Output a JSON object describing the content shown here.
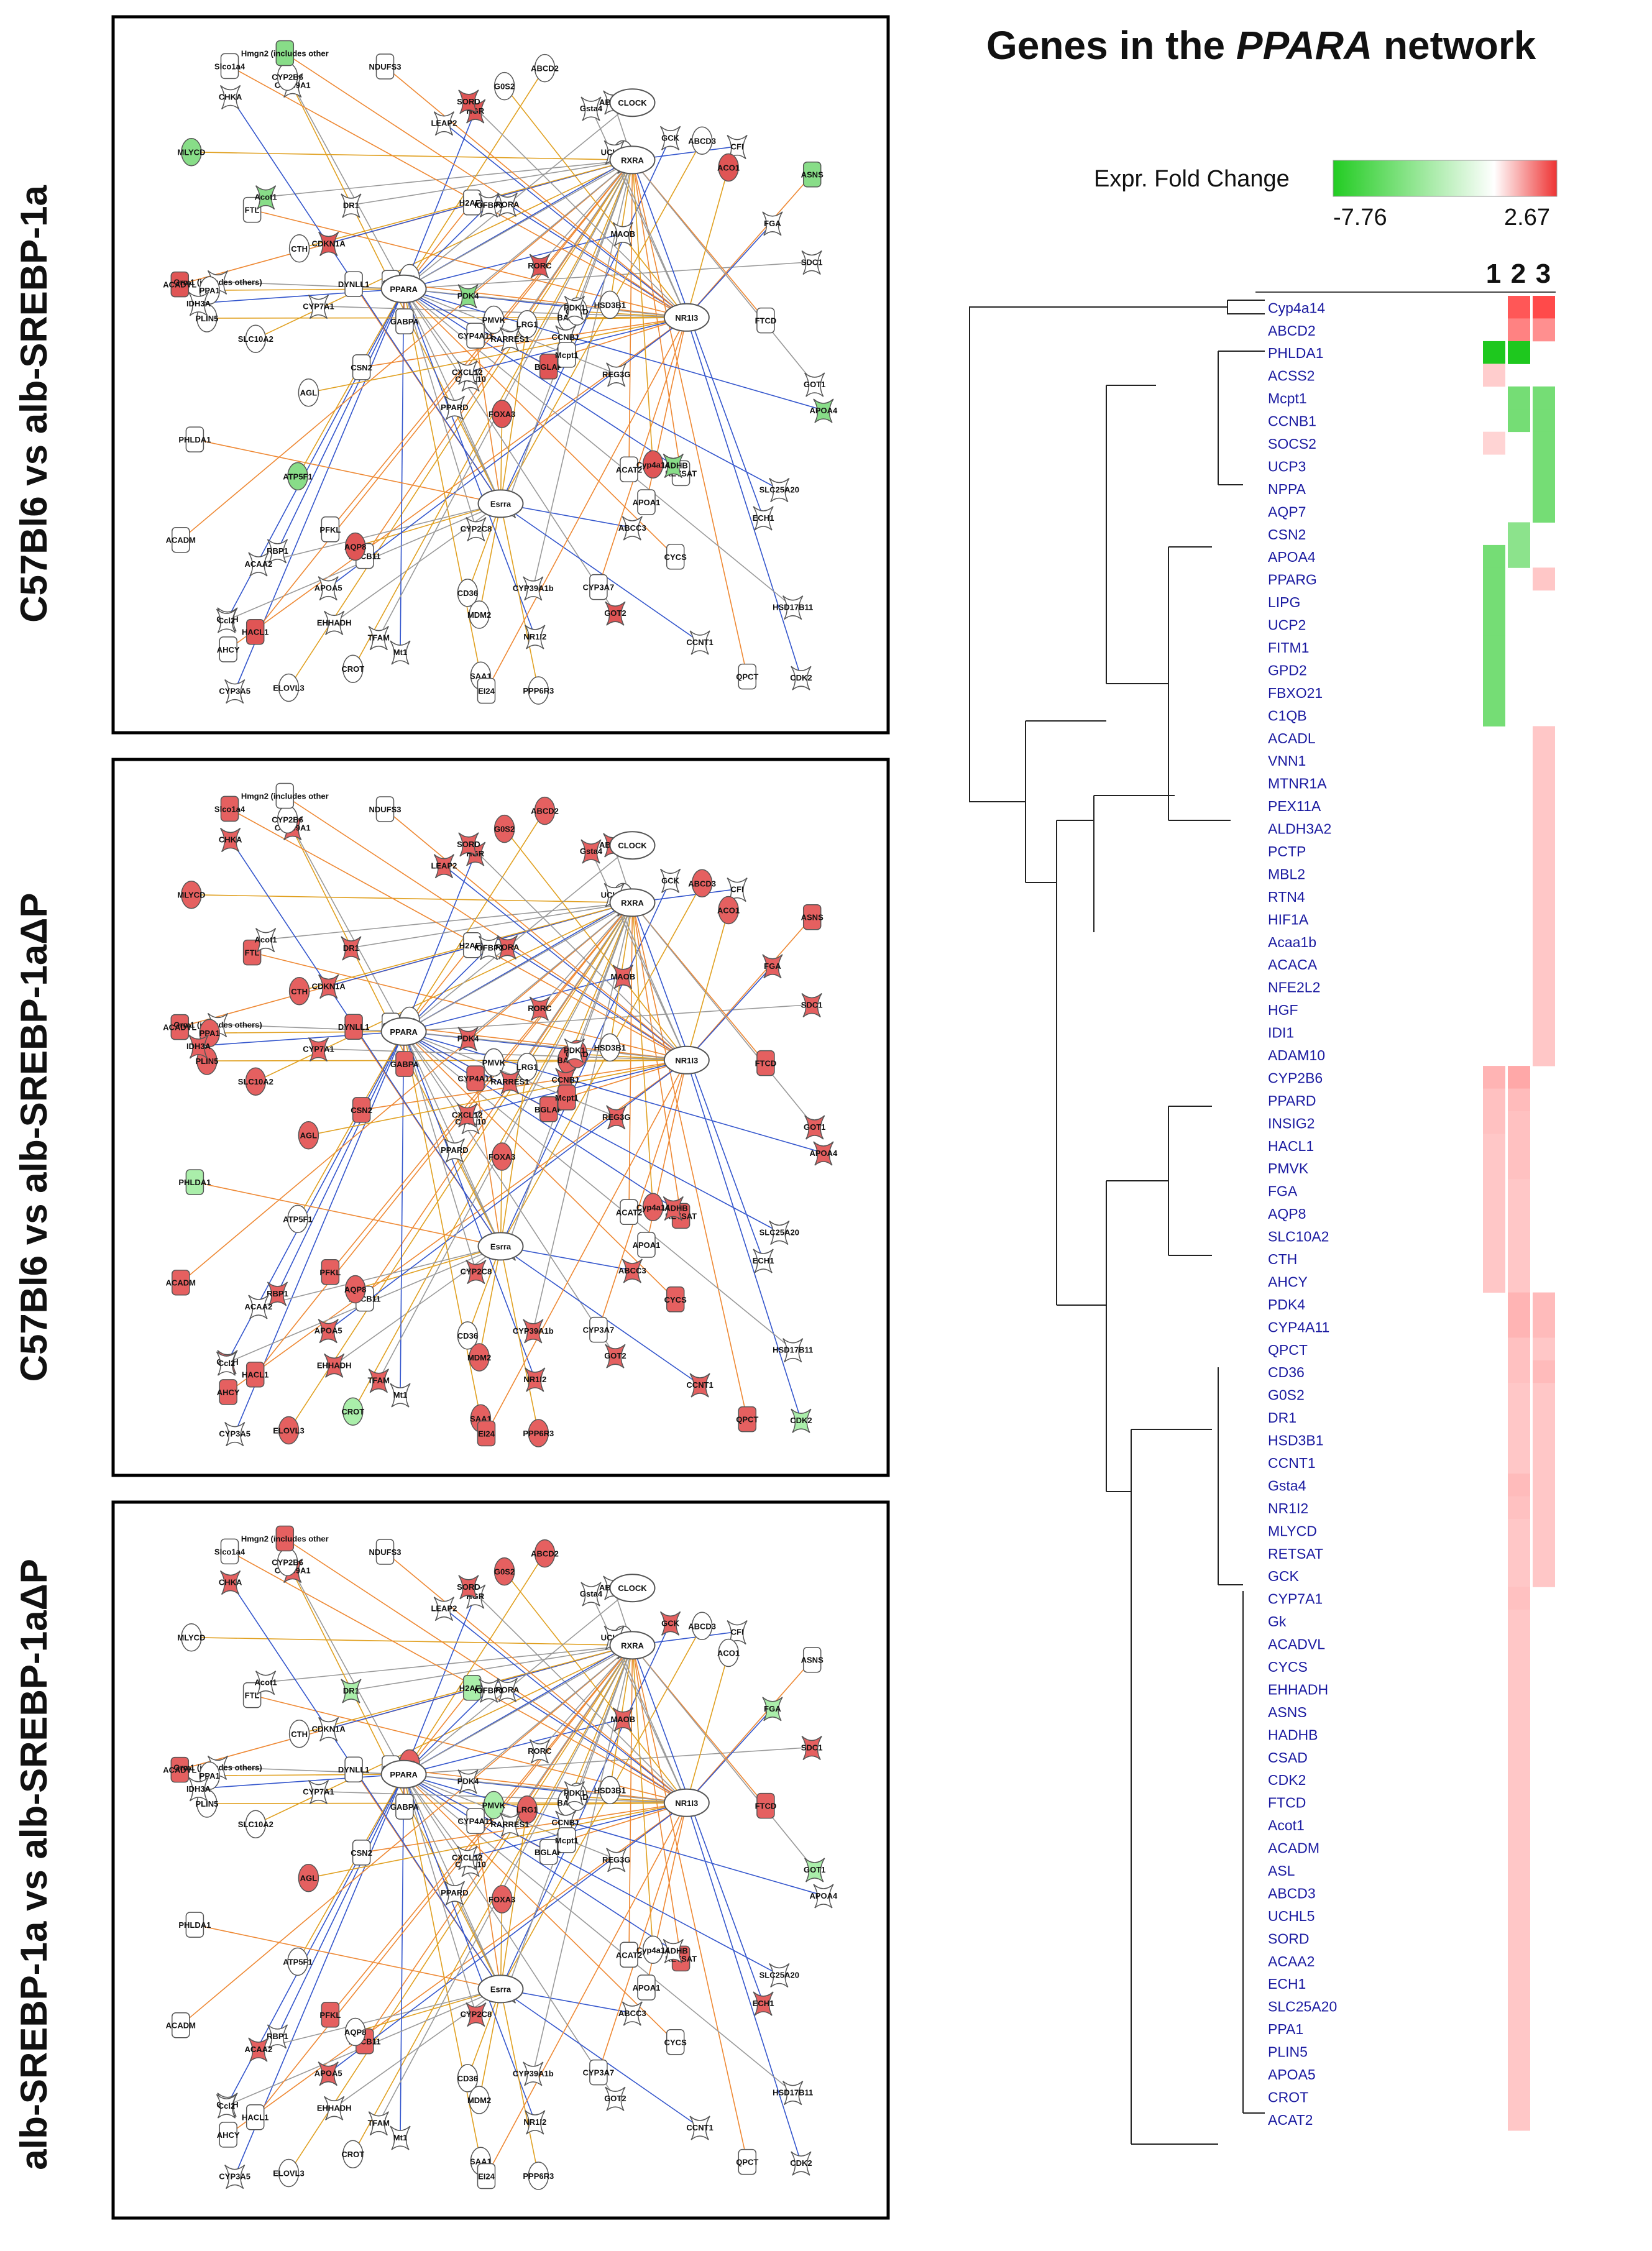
{
  "title": {
    "prefix": "Genes in the ",
    "italic": "PPARA",
    "suffix": " network"
  },
  "legend": {
    "label": "Expr. Fold Change",
    "min_label": "-7.76",
    "max_label": "2.67",
    "low_color": "#22cc22",
    "mid_color": "#ffffff",
    "high_color": "#ee3333"
  },
  "column_labels": [
    "1",
    "2",
    "3"
  ],
  "panels": [
    {
      "label": "C57Bl6 vs alb-SREBP-1a"
    },
    {
      "label": "C57Bl6 vs alb-SREBP-1aΔP"
    },
    {
      "label": "alb-SREBP-1a vs alb-SREBP-1aΔP"
    }
  ],
  "network": {
    "hubs": [
      "PPARA",
      "RXRA",
      "NR1I3",
      "Esrra",
      "CLOCK"
    ],
    "nodes": [
      "FOXA3",
      "FTL",
      "CXCL10",
      "CTSH",
      "BAAT",
      "ABCB11",
      "ABCG2",
      "RORA",
      "GCLC",
      "BGLAP",
      "CYP39A1",
      "CDK2",
      "SLC10A2",
      "ASNS",
      "PPARD",
      "MAOB",
      "ELOVL3",
      "H2AFZ",
      "RORC",
      "RBP1",
      "ASL",
      "AHCY",
      "EHHADH",
      "IGFBP1",
      "CSAD",
      "RETSAT",
      "Acot1",
      "HGR",
      "PLIN5",
      "ACAT2",
      "SDC1",
      "CXCL12",
      "CD36",
      "CYP4A11",
      "DR1",
      "GCK",
      "AQP8",
      "QPCT",
      "HSD17B11",
      "HADHB",
      "ABCD2",
      "GPT",
      "CYP7A1",
      "ABCC3",
      "CROT",
      "ACADVL",
      "CCNB1",
      "CYP3A5",
      "MDM2",
      "Mcpt1",
      "ACAA2",
      "FGA",
      "MLYCD",
      "APOA1",
      "GOT2",
      "APOA5",
      "CYP2B6",
      "Slco1a4",
      "CYP39A1b",
      "CFI",
      "G0S2",
      "CSN2",
      "Orm1 (includes others)",
      "CDKN1A",
      "ABCD3",
      "Hmgn2 (includes other",
      "Gsta4",
      "LEAP2",
      "PMVK",
      "ACADM",
      "CYP2C8",
      "Mt1",
      "Cyp4a14",
      "DYNLL1",
      "Ccl2",
      "CHKA",
      "CTH",
      "PHLDA1",
      "PDK4",
      "NR1I2",
      "LRG1",
      "HACL1",
      "REG3G",
      "SLC25A20",
      "SAA1",
      "FTCD",
      "INSIG2",
      "CCNT1",
      "PPP6R3",
      "CYP3A7",
      "SORD",
      "APOA4",
      "HSD3B1",
      "CYCS",
      "RARRES1",
      "ECH1",
      "PPA1",
      "EI24",
      "UCHL5",
      "POM1",
      "AGL",
      "NDUFS3",
      "GOT1",
      "IDH3A",
      "ATP5F1",
      "PFKL",
      "TFAM",
      "PDK1",
      "ACO1",
      "GABPA"
    ]
  },
  "heatmap": {
    "genes": [
      "Cyp4a14",
      "ABCD2",
      "PHLDA1",
      "ACSS2",
      "Mcpt1",
      "CCNB1",
      "SOCS2",
      "UCP3",
      "NPPA",
      "AQP7",
      "CSN2",
      "APOA4",
      "PPARG",
      "LIPG",
      "UCP2",
      "FITM1",
      "GPD2",
      "FBXO21",
      "C1QB",
      "ACADL",
      "VNN1",
      "MTNR1A",
      "PEX11A",
      "ALDH3A2",
      "PCTP",
      "MBL2",
      "RTN4",
      "HIF1A",
      "Acaa1b",
      "ACACA",
      "NFE2L2",
      "HGF",
      "IDI1",
      "ADAM10",
      "CYP2B6",
      "PPARD",
      "INSIG2",
      "HACL1",
      "PMVK",
      "FGA",
      "AQP8",
      "SLC10A2",
      "CTH",
      "AHCY",
      "PDK4",
      "CYP4A11",
      "QPCT",
      "CD36",
      "G0S2",
      "DR1",
      "HSD3B1",
      "CCNT1",
      "Gsta4",
      "NR1I2",
      "MLYCD",
      "RETSAT",
      "GCK",
      "CYP7A1",
      "Gk",
      "ACADVL",
      "CYCS",
      "EHHADH",
      "ASNS",
      "HADHB",
      "CSAD",
      "CDK2",
      "FTCD",
      "Acot1",
      "ACADM",
      "ASL",
      "ABCD3",
      "UCHL5",
      "SORD",
      "ACAA2",
      "ECH1",
      "SLC25A20",
      "PPA1",
      "PLIN5",
      "APOA5",
      "CROT",
      "ACAT2"
    ],
    "values": [
      [
        0,
        2.4,
        2.6
      ],
      [
        0,
        1.7,
        1.5
      ],
      [
        -7.5,
        -5.5,
        0
      ],
      [
        0.5,
        0,
        0
      ],
      [
        0,
        -2,
        -2
      ],
      [
        0,
        -2,
        -2
      ],
      [
        0.4,
        0,
        -2
      ],
      [
        0,
        0,
        -2
      ],
      [
        0,
        0,
        -2
      ],
      [
        0,
        0,
        -2
      ],
      [
        0,
        -1.5,
        0
      ],
      [
        -2,
        -1.5,
        0
      ],
      [
        -2,
        0,
        0.6
      ],
      [
        -2,
        0,
        0
      ],
      [
        -2,
        0,
        0
      ],
      [
        -2,
        0,
        0
      ],
      [
        -2,
        0,
        0
      ],
      [
        -2,
        0,
        0
      ],
      [
        -2,
        0,
        0
      ],
      [
        0,
        0,
        0.6
      ],
      [
        0,
        0,
        0.6
      ],
      [
        0,
        0,
        0.6
      ],
      [
        0,
        0,
        0.6
      ],
      [
        0,
        0,
        0.6
      ],
      [
        0,
        0,
        0.6
      ],
      [
        0,
        0,
        0.6
      ],
      [
        0,
        0,
        0.6
      ],
      [
        0,
        0,
        0.6
      ],
      [
        0,
        0,
        0.6
      ],
      [
        0,
        0,
        0.6
      ],
      [
        0,
        0,
        0.6
      ],
      [
        0,
        0,
        0.6
      ],
      [
        0,
        0,
        0.6
      ],
      [
        0,
        0,
        0.6
      ],
      [
        0.9,
        1.1,
        0
      ],
      [
        0.7,
        0.8,
        0
      ],
      [
        0.7,
        0.7,
        0
      ],
      [
        0.6,
        0.7,
        0
      ],
      [
        0.6,
        0.7,
        0
      ],
      [
        0.6,
        0.6,
        0
      ],
      [
        0.6,
        0.6,
        0
      ],
      [
        0.6,
        0.6,
        0
      ],
      [
        0.6,
        0.6,
        0
      ],
      [
        0.6,
        0.6,
        0
      ],
      [
        0,
        0.9,
        0.8
      ],
      [
        0,
        0.9,
        0.8
      ],
      [
        0,
        0.7,
        0.6
      ],
      [
        0,
        0.7,
        0.8
      ],
      [
        0,
        0.6,
        0.6
      ],
      [
        0,
        0.6,
        0.6
      ],
      [
        0,
        0.6,
        0.6
      ],
      [
        0,
        0.6,
        0.6
      ],
      [
        0,
        0.8,
        0.6
      ],
      [
        0,
        0.7,
        0.6
      ],
      [
        0,
        0.6,
        0.6
      ],
      [
        0,
        0.6,
        0.6
      ],
      [
        0,
        0.6,
        0.6
      ],
      [
        0,
        0.7,
        0
      ],
      [
        0,
        0.6,
        0
      ],
      [
        0,
        0.6,
        0
      ],
      [
        0,
        0.6,
        0
      ],
      [
        0,
        0.6,
        0
      ],
      [
        0,
        0.6,
        0
      ],
      [
        0,
        0.6,
        0
      ],
      [
        0,
        0.6,
        0
      ],
      [
        0,
        0.6,
        0
      ],
      [
        0,
        0.6,
        0
      ],
      [
        0,
        0.6,
        0
      ],
      [
        0,
        0.6,
        0
      ],
      [
        0,
        0.6,
        0
      ],
      [
        0,
        0.6,
        0
      ],
      [
        0,
        0.6,
        0
      ],
      [
        0,
        0.6,
        0
      ],
      [
        0,
        0.6,
        0
      ],
      [
        0,
        0.6,
        0
      ],
      [
        0,
        0.6,
        0
      ],
      [
        0,
        0.6,
        0
      ],
      [
        0,
        0.6,
        0
      ],
      [
        0,
        0.6,
        0
      ],
      [
        0,
        0.6,
        0
      ],
      [
        0,
        0.6,
        0
      ]
    ]
  }
}
